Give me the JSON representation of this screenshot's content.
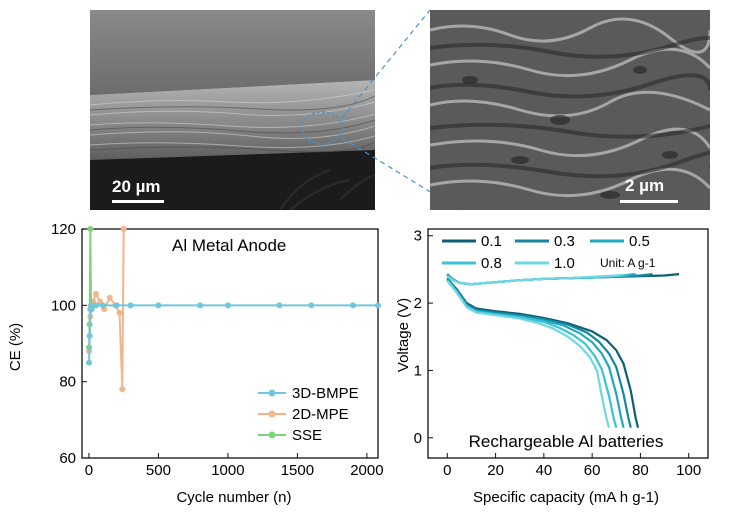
{
  "sem_images": {
    "left_scalebar_label": "20 µm",
    "right_scalebar_label": "2 µm",
    "zoom_line_color": "#4a90c8"
  },
  "chart_data": [
    {
      "type": "line",
      "title": "Al Metal Anode",
      "xlabel": "Cycle number (n)",
      "ylabel": "CE (%)",
      "xlim": [
        -50,
        2080
      ],
      "ylim": [
        60,
        120
      ],
      "xticks": [
        0,
        500,
        1000,
        1500,
        2000
      ],
      "yticks": [
        60,
        80,
        100,
        120
      ],
      "legend_position": "bottom-right",
      "series": [
        {
          "name": "3D-BMPE",
          "color": "#6fc7de",
          "x": [
            1,
            5,
            10,
            20,
            50,
            100,
            200,
            300,
            500,
            800,
            1000,
            1370,
            1600,
            1900,
            2080
          ],
          "y": [
            85,
            92,
            99,
            100,
            100,
            100,
            100,
            100,
            100,
            100,
            100,
            100,
            100,
            100,
            100
          ]
        },
        {
          "name": "2D-MPE",
          "color": "#f4b58c",
          "x": [
            1,
            10,
            30,
            50,
            80,
            110,
            150,
            190,
            220,
            240,
            250
          ],
          "y": [
            88,
            97,
            101,
            103,
            101,
            99,
            102,
            100,
            98,
            78,
            120
          ]
        },
        {
          "name": "SSE",
          "color": "#7fd37f",
          "x": [
            1,
            5,
            10,
            15,
            20
          ],
          "y": [
            89,
            95,
            120,
            100,
            99
          ]
        }
      ]
    },
    {
      "type": "line",
      "title": "Rechargeable Al batteries",
      "xlabel": "Specific capacity (mA h g-1)",
      "ylabel": "Voltage (V)",
      "xlim": [
        -8,
        108
      ],
      "ylim": [
        -0.3,
        3.1
      ],
      "xticks": [
        0,
        20,
        40,
        60,
        80,
        100
      ],
      "yticks": [
        0,
        1,
        2,
        3
      ],
      "legend_position": "top",
      "legend_unit": "Unit: A g-1",
      "series": [
        {
          "name": "0.1",
          "color": "#0d5f74",
          "discharge_x": [
            0,
            2,
            4,
            8,
            12,
            20,
            30,
            40,
            50,
            60,
            66,
            70,
            73,
            76,
            78,
            79
          ],
          "discharge_y": [
            2.37,
            2.28,
            2.2,
            2.0,
            1.92,
            1.88,
            1.84,
            1.78,
            1.7,
            1.58,
            1.45,
            1.3,
            1.1,
            0.7,
            0.3,
            0.15
          ],
          "charge_x": [
            0,
            2,
            5,
            10,
            20,
            30,
            40,
            50,
            60,
            70,
            80,
            90,
            96
          ],
          "charge_y": [
            2.43,
            2.36,
            2.3,
            2.28,
            2.31,
            2.34,
            2.36,
            2.37,
            2.38,
            2.39,
            2.4,
            2.41,
            2.43
          ]
        },
        {
          "name": "0.3",
          "color": "#16879f",
          "discharge_x": [
            0,
            2,
            4,
            8,
            12,
            20,
            30,
            40,
            50,
            58,
            63,
            67,
            70,
            73,
            75,
            76
          ],
          "discharge_y": [
            2.36,
            2.27,
            2.18,
            1.98,
            1.9,
            1.86,
            1.82,
            1.76,
            1.68,
            1.56,
            1.42,
            1.25,
            1.05,
            0.65,
            0.3,
            0.15
          ],
          "charge_x": [
            0,
            2,
            5,
            10,
            20,
            30,
            40,
            50,
            60,
            70,
            80,
            85
          ],
          "charge_y": [
            2.42,
            2.35,
            2.3,
            2.28,
            2.31,
            2.34,
            2.36,
            2.37,
            2.38,
            2.39,
            2.41,
            2.43
          ]
        },
        {
          "name": "0.5",
          "color": "#21a7c0",
          "discharge_x": [
            0,
            2,
            4,
            8,
            12,
            20,
            30,
            40,
            48,
            55,
            60,
            64,
            67,
            70,
            72,
            73
          ],
          "discharge_y": [
            2.35,
            2.26,
            2.17,
            1.96,
            1.88,
            1.84,
            1.8,
            1.74,
            1.67,
            1.55,
            1.42,
            1.25,
            1.05,
            0.65,
            0.3,
            0.15
          ],
          "charge_x": [
            0,
            2,
            5,
            10,
            20,
            30,
            40,
            50,
            60,
            70,
            78
          ],
          "charge_y": [
            2.42,
            2.35,
            2.3,
            2.28,
            2.31,
            2.34,
            2.36,
            2.37,
            2.38,
            2.4,
            2.43
          ]
        },
        {
          "name": "0.8",
          "color": "#3cc2d6",
          "discharge_x": [
            0,
            2,
            4,
            8,
            12,
            20,
            30,
            40,
            46,
            52,
            57,
            61,
            64,
            67,
            69,
            70
          ],
          "discharge_y": [
            2.34,
            2.25,
            2.16,
            1.95,
            1.87,
            1.83,
            1.79,
            1.72,
            1.64,
            1.53,
            1.4,
            1.22,
            1.02,
            0.62,
            0.28,
            0.15
          ],
          "charge_x": [
            0,
            2,
            5,
            10,
            20,
            30,
            40,
            50,
            60,
            70,
            75
          ],
          "charge_y": [
            2.41,
            2.35,
            2.3,
            2.28,
            2.31,
            2.34,
            2.36,
            2.37,
            2.38,
            2.4,
            2.42
          ]
        },
        {
          "name": "1.0",
          "color": "#6fd6e6",
          "discharge_x": [
            0,
            2,
            4,
            8,
            12,
            20,
            30,
            38,
            44,
            50,
            55,
            59,
            62,
            64,
            66,
            67
          ],
          "discharge_y": [
            2.33,
            2.24,
            2.15,
            1.94,
            1.86,
            1.82,
            1.77,
            1.7,
            1.62,
            1.5,
            1.36,
            1.2,
            1.0,
            0.62,
            0.28,
            0.15
          ],
          "charge_x": [
            0,
            2,
            5,
            10,
            20,
            30,
            40,
            50,
            60,
            70,
            73
          ],
          "charge_y": [
            2.4,
            2.34,
            2.3,
            2.28,
            2.31,
            2.34,
            2.36,
            2.37,
            2.39,
            2.41,
            2.42
          ]
        }
      ]
    }
  ]
}
